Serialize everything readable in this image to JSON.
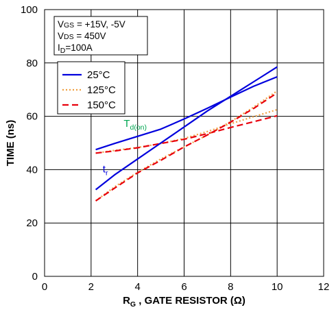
{
  "chart_data": {
    "type": "line",
    "xlabel": {
      "main": "R",
      "sub": "G",
      "rest": " , GATE RESISTOR (Ω)"
    },
    "ylabel": "TIME (ns)",
    "xlim": [
      0,
      12
    ],
    "ylim": [
      0,
      100
    ],
    "xticks": [
      "0",
      "2",
      "4",
      "6",
      "8",
      "10",
      "12"
    ],
    "yticks": [
      "0",
      "20",
      "40",
      "60",
      "80",
      "100"
    ],
    "grid": true,
    "conditions": [
      {
        "main": "V",
        "sub": "GS",
        "rest": " = +15V, -5V"
      },
      {
        "main": "V",
        "sub": "DS",
        "rest": " = 450V"
      },
      {
        "main": "I",
        "sub": "D",
        "rest": "=100A"
      }
    ],
    "legend": {
      "placement": "top-left",
      "entries": [
        {
          "label": "25°C",
          "color": "#0000dd",
          "style": "solid"
        },
        {
          "label": "125°C",
          "color": "#f0a040",
          "style": "dotted"
        },
        {
          "label": "150°C",
          "color": "#e8000b",
          "style": "dashed"
        }
      ]
    },
    "annotations": [
      {
        "main": "T",
        "sub": "d(on)",
        "color": "#00a651",
        "x": 3.4,
        "y": 56
      },
      {
        "main": "t",
        "sub": "r",
        "color": "#0000dd",
        "x": 2.5,
        "y": 39
      }
    ],
    "series": [
      {
        "group": "Td(on)",
        "temp": "25°C",
        "color": "#0000dd",
        "style": "solid",
        "x": [
          2.2,
          3,
          4,
          5,
          6,
          7,
          8,
          9,
          10
        ],
        "y": [
          47.5,
          49.8,
          52.5,
          55.2,
          59,
          63,
          67.2,
          71.3,
          74.8
        ]
      },
      {
        "group": "Td(on)",
        "temp": "125°C",
        "color": "#f0a040",
        "style": "dotted",
        "x": [
          2.2,
          3,
          4,
          5,
          6,
          7,
          8,
          9,
          10
        ],
        "y": [
          46.2,
          47.2,
          48.3,
          49.8,
          51.7,
          54.3,
          57.2,
          59.9,
          62.5
        ]
      },
      {
        "group": "Td(on)",
        "temp": "150°C",
        "color": "#e8000b",
        "style": "dashed",
        "x": [
          2.2,
          3,
          4,
          5,
          6,
          7,
          8,
          9,
          10
        ],
        "y": [
          46.2,
          47,
          48.2,
          49.8,
          51.4,
          53.5,
          55.8,
          58,
          60.2
        ]
      },
      {
        "group": "tr",
        "temp": "25°C",
        "color": "#0000dd",
        "style": "solid",
        "x": [
          2.2,
          3,
          4,
          5,
          6,
          7,
          8,
          9,
          10
        ],
        "y": [
          32.5,
          38,
          44,
          50,
          56,
          62,
          67.5,
          73,
          78.5
        ]
      },
      {
        "group": "tr",
        "temp": "125°C",
        "color": "#f0a040",
        "style": "dotted",
        "x": [
          2.2,
          3,
          4,
          5,
          6,
          7,
          8,
          9,
          10
        ],
        "y": [
          28.3,
          33.5,
          39,
          44,
          48.5,
          53,
          58,
          63.5,
          69.5
        ]
      },
      {
        "group": "tr",
        "temp": "150°C",
        "color": "#e8000b",
        "style": "dashed",
        "x": [
          2.2,
          3,
          4,
          5,
          6,
          7,
          8,
          9,
          10
        ],
        "y": [
          28.3,
          33,
          38.8,
          43.5,
          48.5,
          53,
          57.8,
          63,
          68.8
        ]
      }
    ]
  }
}
